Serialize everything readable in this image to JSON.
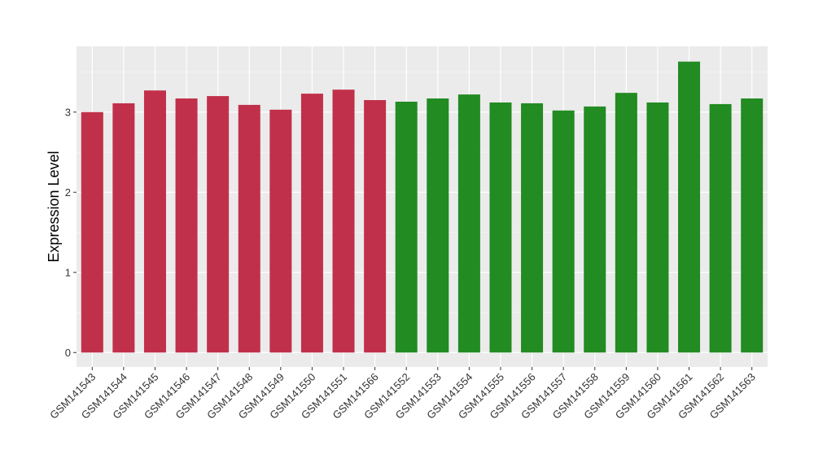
{
  "chart_data": {
    "type": "bar",
    "ylabel": "Expression Level",
    "xlabel": "",
    "ylim": [
      -0.18,
      3.82
    ],
    "yticks": [
      0,
      1,
      2,
      3
    ],
    "grid": true,
    "panel_background": "#ebebeb",
    "categories": [
      "GSM141543",
      "GSM141544",
      "GSM141545",
      "GSM141546",
      "GSM141547",
      "GSM141548",
      "GSM141549",
      "GSM141550",
      "GSM141551",
      "GSM141566",
      "GSM141552",
      "GSM141553",
      "GSM141554",
      "GSM141555",
      "GSM141556",
      "GSM141557",
      "GSM141558",
      "GSM141559",
      "GSM141560",
      "GSM141561",
      "GSM141562",
      "GSM141563"
    ],
    "values": [
      3.0,
      3.11,
      3.27,
      3.17,
      3.2,
      3.09,
      3.03,
      3.23,
      3.28,
      3.15,
      3.13,
      3.17,
      3.22,
      3.12,
      3.11,
      3.02,
      3.07,
      3.24,
      3.12,
      3.63,
      3.1,
      3.17
    ],
    "bar_colors": [
      "#c1304a",
      "#c1304a",
      "#c1304a",
      "#c1304a",
      "#c1304a",
      "#c1304a",
      "#c1304a",
      "#c1304a",
      "#c1304a",
      "#c1304a",
      "#228b22",
      "#228b22",
      "#228b22",
      "#228b22",
      "#228b22",
      "#228b22",
      "#228b22",
      "#228b22",
      "#228b22",
      "#228b22",
      "#228b22",
      "#228b22"
    ]
  }
}
